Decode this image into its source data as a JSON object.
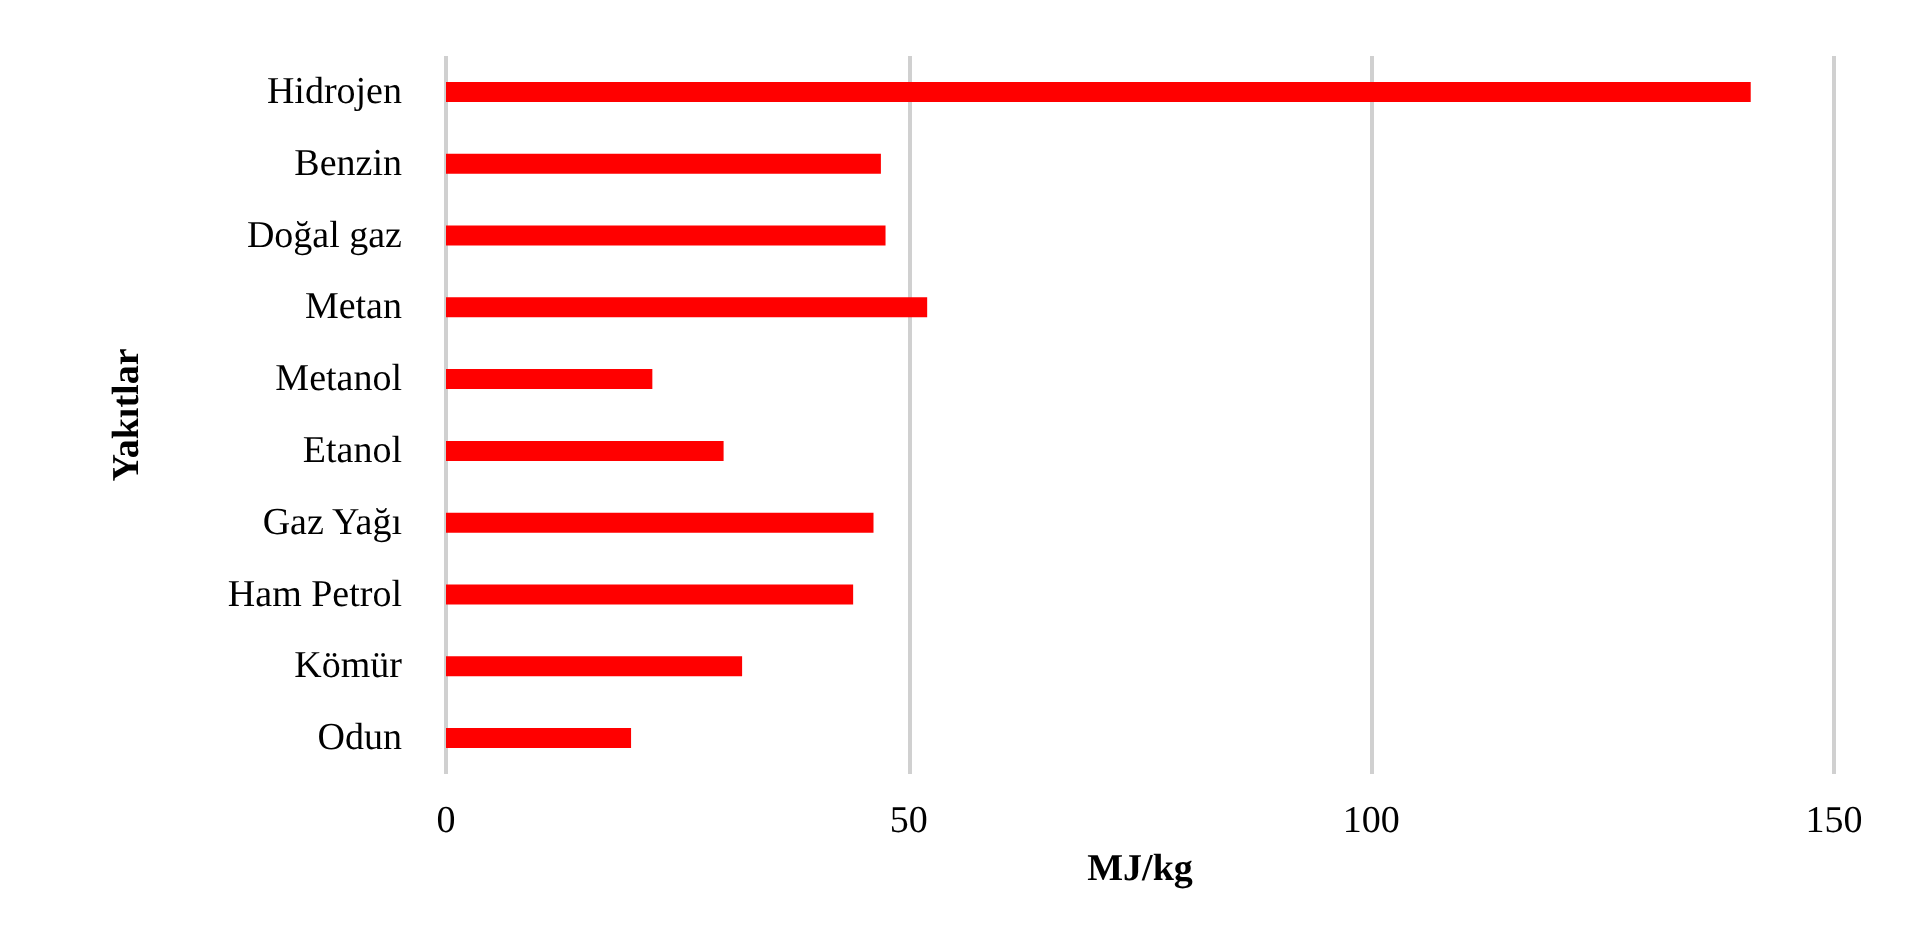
{
  "chart_data": {
    "type": "bar",
    "orientation": "horizontal",
    "xlabel": "MJ/kg",
    "ylabel": "Yakıtlar",
    "categories": [
      "Hidrojen",
      "Benzin",
      "Doğal gaz",
      "Metan",
      "Metanol",
      "Etanol",
      "Gaz Yağı",
      "Ham Petrol",
      "Kömür",
      "Odun"
    ],
    "values": [
      141,
      47,
      47.5,
      52,
      22.3,
      30,
      46.2,
      44,
      32,
      20
    ],
    "color": "#ff0000",
    "xlim": [
      0,
      150
    ],
    "xticks": [
      0,
      50,
      100,
      150
    ],
    "grid": "x"
  }
}
